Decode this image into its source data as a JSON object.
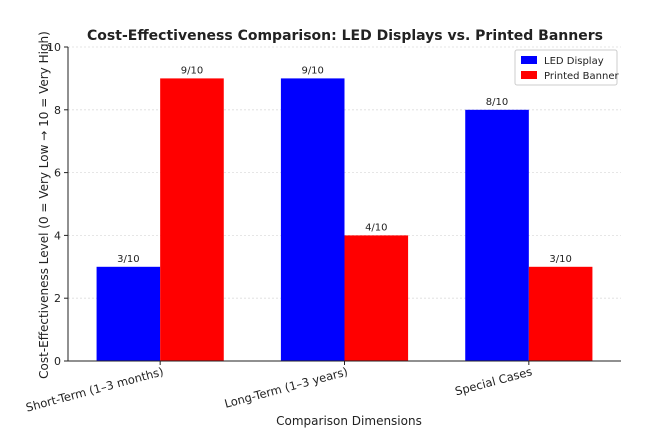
{
  "chart_data": {
    "type": "bar",
    "title": "Cost-Effectiveness Comparison: LED Displays vs. Printed Banners",
    "xlabel": "Comparison Dimensions",
    "ylabel": "Cost-Effectiveness Level (0 = Very Low → 10 = Very High)",
    "categories": [
      "Short-Term (1–3 months)",
      "Long-Term (1–3 years)",
      "Special Cases"
    ],
    "series": [
      {
        "name": "LED Display",
        "color": "#0000ff",
        "values": [
          3,
          9,
          8
        ],
        "labels": [
          "3/10",
          "9/10",
          "8/10"
        ]
      },
      {
        "name": "Printed Banner",
        "color": "#ff0000",
        "values": [
          9,
          4,
          3
        ],
        "labels": [
          "9/10",
          "4/10",
          "3/10"
        ]
      }
    ],
    "ylim": [
      0,
      10
    ],
    "yticks": [
      "0",
      "2",
      "4",
      "6",
      "8",
      "10"
    ],
    "grid": true,
    "legend_position": "top-right"
  }
}
